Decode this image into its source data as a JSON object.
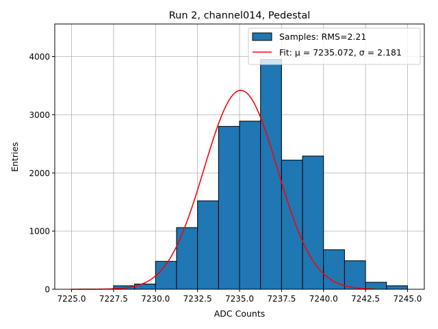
{
  "chart_data": {
    "type": "bar",
    "title": "Run 2, channel014, Pedestal",
    "xlabel": "ADC Counts",
    "ylabel": "Entries",
    "xlim": [
      7224.0,
      7246.0
    ],
    "ylim": [
      0,
      4560
    ],
    "xticks": [
      7225.0,
      7227.5,
      7230.0,
      7232.5,
      7235.0,
      7237.5,
      7240.0,
      7242.5,
      7245.0
    ],
    "xtick_labels": [
      "7225.0",
      "7227.5",
      "7230.0",
      "7232.5",
      "7235.0",
      "7237.5",
      "7240.0",
      "7242.5",
      "7245.0"
    ],
    "yticks": [
      0,
      1000,
      2000,
      3000,
      4000
    ],
    "ytick_labels": [
      "0",
      "1000",
      "2000",
      "3000",
      "4000"
    ],
    "grid": true,
    "legend_position": "top-right",
    "histogram": {
      "name": "Samples: RMS=2.21",
      "color": "#1f77b4",
      "bin_edges": [
        7225.0,
        7226.25,
        7227.5,
        7228.75,
        7230.0,
        7231.25,
        7232.5,
        7233.75,
        7235.0,
        7236.25,
        7237.5,
        7238.75,
        7240.0,
        7241.25,
        7242.5,
        7243.75,
        7245.0
      ],
      "counts": [
        0,
        0,
        60,
        90,
        480,
        1060,
        1520,
        2800,
        2890,
        3950,
        2220,
        2290,
        680,
        490,
        120,
        60
      ]
    },
    "fit": {
      "name": "Fit: μ = 7235.072, σ = 2.181",
      "color": "#ff0000",
      "mu": 7235.072,
      "sigma": 2.181,
      "amplitude": 3420,
      "x_range": [
        7225.0,
        7243.0
      ]
    }
  }
}
